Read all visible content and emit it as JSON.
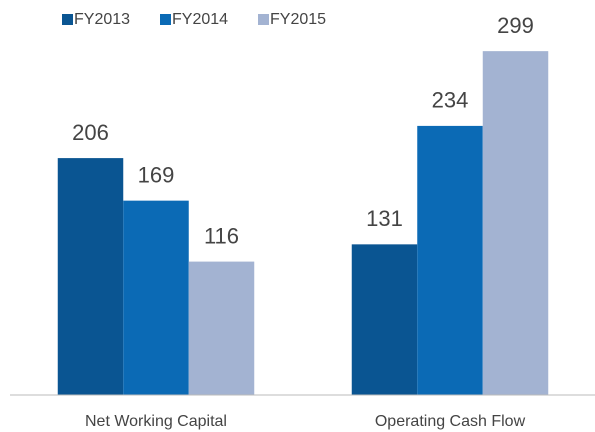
{
  "chart_data": {
    "type": "bar",
    "categories": [
      "Net Working Capital",
      "Operating Cash Flow"
    ],
    "series": [
      {
        "name": "FY2013",
        "color": "#0a5592",
        "values": [
          206,
          131
        ]
      },
      {
        "name": "FY2014",
        "color": "#0b6ab5",
        "values": [
          169,
          234
        ]
      },
      {
        "name": "FY2015",
        "color": "#a3b3d2",
        "values": [
          116,
          299
        ]
      }
    ],
    "ylim": [
      0,
      340
    ],
    "legend": "top-left"
  }
}
